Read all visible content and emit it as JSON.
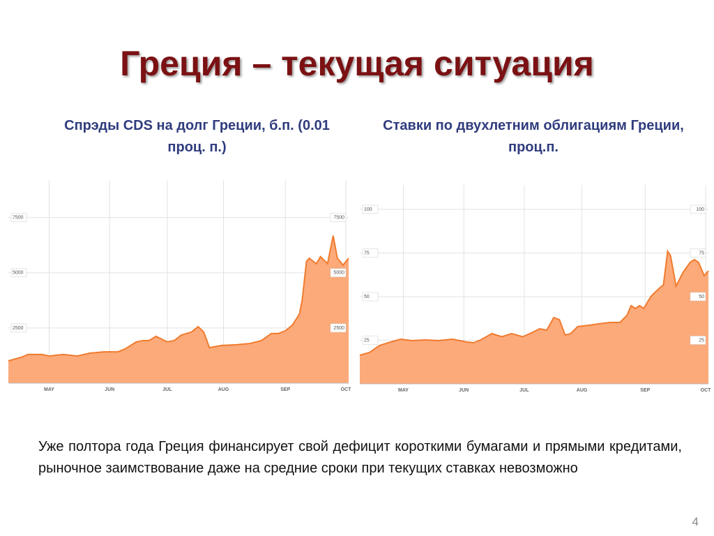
{
  "title": "Греция – текущая ситуация",
  "chart_data": [
    {
      "type": "area",
      "title": "Спрэды CDS на долг Греции, б.п. (0.01 проц. п.)",
      "color": "#fcaa7a",
      "line_color": "#f07b2e",
      "x": [
        0,
        0.9,
        1.4,
        2.4,
        2.9,
        3.9,
        4.9,
        5.8,
        6.8,
        7.8,
        8.3,
        9.1,
        9.6,
        10.0,
        10.5,
        11.3,
        11.8,
        12.3,
        13.0,
        13.5,
        13.9,
        14.3,
        15.2,
        16.2,
        17.2,
        18.0,
        18.7,
        19.2,
        19.7,
        20.2,
        20.7,
        20.9,
        21.2,
        21.4,
        21.9,
        22.2,
        22.7,
        23.1,
        23.4,
        23.8,
        24.2
      ],
      "values": [
        1010,
        1170,
        1300,
        1300,
        1230,
        1300,
        1230,
        1360,
        1420,
        1420,
        1550,
        1870,
        1930,
        1930,
        2120,
        1870,
        1930,
        2180,
        2310,
        2560,
        2310,
        1610,
        1710,
        1740,
        1800,
        1930,
        2250,
        2250,
        2370,
        2630,
        3130,
        3770,
        5510,
        5660,
        5410,
        5730,
        5410,
        6680,
        5660,
        5350,
        5660
      ],
      "xlim": [
        0,
        24.2
      ],
      "xticks": [
        {
          "value": 2.9,
          "label": "MAY"
        },
        {
          "value": 7.2,
          "label": "JUN"
        },
        {
          "value": 11.3,
          "label": "JUL"
        },
        {
          "value": 15.3,
          "label": "AUG"
        },
        {
          "value": 19.7,
          "label": "SEP"
        },
        {
          "value": 24.0,
          "label": "OCT"
        }
      ],
      "ylim": [
        0,
        9200
      ],
      "yticks": [
        2500,
        5000,
        7500
      ],
      "grid": true
    },
    {
      "type": "area",
      "title": "Ставки по двухлетним облигациям Греции, проц.п.",
      "color": "#fcaa7a",
      "line_color": "#f07b2e",
      "x": [
        0,
        0.7,
        1.4,
        2.2,
        2.9,
        3.7,
        4.7,
        5.6,
        6.6,
        7.6,
        8.1,
        8.6,
        9.4,
        10.1,
        10.8,
        11.6,
        12.3,
        12.8,
        13.3,
        13.8,
        14.2,
        14.6,
        15.0,
        15.5,
        16.3,
        17.0,
        17.8,
        18.5,
        19.0,
        19.3,
        19.6,
        19.9,
        20.2,
        20.7,
        21.2,
        21.6,
        21.9,
        22.1,
        22.5,
        23.0,
        23.5,
        23.8,
        24.1,
        24.5,
        24.8
      ],
      "values": [
        16.4,
        18,
        22,
        24,
        25.6,
        24.8,
        25.2,
        24.8,
        25.6,
        24,
        23.6,
        25.2,
        28.8,
        27,
        28.8,
        27,
        29.6,
        31.6,
        30.8,
        38,
        36.8,
        28,
        28.8,
        32.8,
        33.6,
        34.4,
        35.2,
        35.2,
        39.2,
        44.8,
        43.2,
        44.8,
        43.2,
        50,
        54,
        56.8,
        76,
        73.6,
        56,
        64,
        69.6,
        71.2,
        69.6,
        62,
        64.8
      ],
      "xlim": [
        0,
        24.8
      ],
      "xticks": [
        {
          "value": 3.1,
          "label": "MAY"
        },
        {
          "value": 7.4,
          "label": "JUN"
        },
        {
          "value": 11.7,
          "label": "JUL"
        },
        {
          "value": 15.8,
          "label": "AUG"
        },
        {
          "value": 20.3,
          "label": "SEP"
        },
        {
          "value": 24.6,
          "label": "OCT"
        }
      ],
      "ylim": [
        0,
        114
      ],
      "yticks": [
        25,
        50,
        75,
        100
      ],
      "grid": true
    }
  ],
  "text": "Уже полтора года Греция финансирует свой дефицит короткими бумагами и прямыми кредитами, рыночное заимствование даже на средние сроки при текущих ставках невозможно",
  "page_number": 4
}
